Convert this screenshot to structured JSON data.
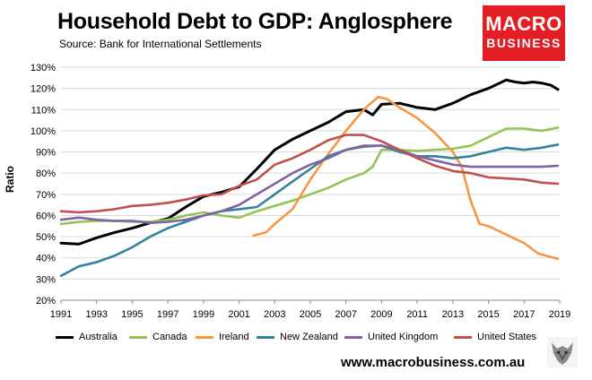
{
  "title": "Household Debt to GDP: Anglosphere",
  "subtitle": "Source: Bank for International Settlements",
  "logo": {
    "line1": "MACRO",
    "line2": "BUSINESS",
    "color": "#e31e24"
  },
  "website": "www.macrobusiness.com.au",
  "chart_data": {
    "type": "line",
    "ylabel": "Ratio",
    "xlabel": "",
    "xlim": [
      1991,
      2019
    ],
    "ylim": [
      20,
      130
    ],
    "x_ticks": [
      "1991",
      "1993",
      "1995",
      "1997",
      "1999",
      "2001",
      "2003",
      "2005",
      "2007",
      "2009",
      "2011",
      "2013",
      "2015",
      "2017",
      "2019"
    ],
    "y_ticks": [
      "20%",
      "30%",
      "40%",
      "50%",
      "60%",
      "70%",
      "80%",
      "90%",
      "100%",
      "110%",
      "120%",
      "130%"
    ],
    "grid": "horizontal",
    "legend_position": "bottom",
    "series": [
      {
        "name": "Australia",
        "color": "#000000",
        "points": [
          [
            1991,
            47
          ],
          [
            1992,
            46.5
          ],
          [
            1993,
            49.5
          ],
          [
            1994,
            52
          ],
          [
            1995,
            54
          ],
          [
            1996,
            56.5
          ],
          [
            1997,
            58.5
          ],
          [
            1998,
            64
          ],
          [
            1999,
            69
          ],
          [
            2000,
            71
          ],
          [
            2001,
            73.5
          ],
          [
            2002,
            82
          ],
          [
            2003,
            91
          ],
          [
            2004,
            96
          ],
          [
            2005,
            100
          ],
          [
            2006,
            104
          ],
          [
            2007,
            109
          ],
          [
            2008,
            110
          ],
          [
            2008.5,
            107.5
          ],
          [
            2009,
            112.5
          ],
          [
            2010,
            113
          ],
          [
            2011,
            111
          ],
          [
            2012,
            110
          ],
          [
            2013,
            113
          ],
          [
            2014,
            117
          ],
          [
            2015,
            120
          ],
          [
            2016,
            124
          ],
          [
            2016.5,
            123
          ],
          [
            2017,
            122.5
          ],
          [
            2017.5,
            123
          ],
          [
            2018,
            122.5
          ],
          [
            2018.5,
            121.5
          ],
          [
            2018.9,
            119.5
          ]
        ]
      },
      {
        "name": "Canada",
        "color": "#92c353",
        "points": [
          [
            1991,
            56
          ],
          [
            1992,
            57
          ],
          [
            1993,
            57.5
          ],
          [
            1994,
            57.5
          ],
          [
            1995,
            57
          ],
          [
            1996,
            57
          ],
          [
            1997,
            58
          ],
          [
            1998,
            60
          ],
          [
            1999,
            61.5
          ],
          [
            2000,
            60
          ],
          [
            2001,
            59
          ],
          [
            2002,
            62
          ],
          [
            2003,
            64.5
          ],
          [
            2004,
            67
          ],
          [
            2005,
            70
          ],
          [
            2006,
            73
          ],
          [
            2007,
            77
          ],
          [
            2008,
            80
          ],
          [
            2008.5,
            83
          ],
          [
            2009,
            91
          ],
          [
            2010,
            91
          ],
          [
            2011,
            90.5
          ],
          [
            2012,
            91
          ],
          [
            2013,
            91.5
          ],
          [
            2014,
            93
          ],
          [
            2015,
            97
          ],
          [
            2016,
            101
          ],
          [
            2017,
            101
          ],
          [
            2018,
            100
          ],
          [
            2018.9,
            101.5
          ]
        ]
      },
      {
        "name": "Ireland",
        "color": "#f79646",
        "points": [
          [
            2001.8,
            50.5
          ],
          [
            2002.5,
            52
          ],
          [
            2003,
            56
          ],
          [
            2004,
            63
          ],
          [
            2005,
            77
          ],
          [
            2006,
            89
          ],
          [
            2007,
            100
          ],
          [
            2008,
            110
          ],
          [
            2008.8,
            116
          ],
          [
            2009.3,
            115
          ],
          [
            2010,
            111
          ],
          [
            2011,
            106
          ],
          [
            2012,
            99
          ],
          [
            2013,
            90
          ],
          [
            2013.5,
            83
          ],
          [
            2014,
            67
          ],
          [
            2014.5,
            56
          ],
          [
            2015,
            55
          ],
          [
            2016,
            51
          ],
          [
            2017,
            47
          ],
          [
            2017.8,
            42
          ],
          [
            2018.9,
            39.5
          ]
        ]
      },
      {
        "name": "New Zealand",
        "color": "#31849b",
        "points": [
          [
            1991,
            31.5
          ],
          [
            1992,
            36
          ],
          [
            1993,
            38
          ],
          [
            1994,
            41
          ],
          [
            1995,
            45
          ],
          [
            1996,
            50
          ],
          [
            1997,
            54
          ],
          [
            1998,
            57
          ],
          [
            1999,
            60
          ],
          [
            2000,
            62
          ],
          [
            2001,
            63
          ],
          [
            2002,
            64
          ],
          [
            2003,
            70
          ],
          [
            2004,
            76
          ],
          [
            2005,
            82
          ],
          [
            2006,
            88
          ],
          [
            2007,
            91
          ],
          [
            2008,
            92.5
          ],
          [
            2009,
            93
          ],
          [
            2010,
            90
          ],
          [
            2011,
            88
          ],
          [
            2012,
            88
          ],
          [
            2013,
            87
          ],
          [
            2014,
            88
          ],
          [
            2015,
            90
          ],
          [
            2016,
            92
          ],
          [
            2017,
            91
          ],
          [
            2018,
            92
          ],
          [
            2018.9,
            93.5
          ]
        ]
      },
      {
        "name": "United Kingdom",
        "color": "#8064a2",
        "points": [
          [
            1991,
            58
          ],
          [
            1992,
            59
          ],
          [
            1993,
            58
          ],
          [
            1994,
            57.5
          ],
          [
            1995,
            57.5
          ],
          [
            1996,
            56.5
          ],
          [
            1997,
            57
          ],
          [
            1998,
            58
          ],
          [
            1999,
            60
          ],
          [
            2000,
            62
          ],
          [
            2001,
            65
          ],
          [
            2002,
            70
          ],
          [
            2003,
            75
          ],
          [
            2004,
            80
          ],
          [
            2005,
            84
          ],
          [
            2006,
            87
          ],
          [
            2007,
            91
          ],
          [
            2008,
            93
          ],
          [
            2009,
            93
          ],
          [
            2010,
            91
          ],
          [
            2011,
            88
          ],
          [
            2012,
            86
          ],
          [
            2013,
            84
          ],
          [
            2014,
            83
          ],
          [
            2015,
            83
          ],
          [
            2016,
            83
          ],
          [
            2017,
            83
          ],
          [
            2018,
            83
          ],
          [
            2018.9,
            83.5
          ]
        ]
      },
      {
        "name": "United States",
        "color": "#c0504d",
        "points": [
          [
            1991,
            62
          ],
          [
            1992,
            61.5
          ],
          [
            1993,
            62
          ],
          [
            1994,
            63
          ],
          [
            1995,
            64.5
          ],
          [
            1996,
            65
          ],
          [
            1997,
            66
          ],
          [
            1998,
            67.5
          ],
          [
            1999,
            69.5
          ],
          [
            2000,
            70
          ],
          [
            2001,
            74
          ],
          [
            2002,
            77
          ],
          [
            2003,
            84
          ],
          [
            2004,
            87
          ],
          [
            2005,
            91
          ],
          [
            2006,
            95.5
          ],
          [
            2007,
            98
          ],
          [
            2008,
            98
          ],
          [
            2009,
            95
          ],
          [
            2010,
            91
          ],
          [
            2011,
            87
          ],
          [
            2012,
            83.5
          ],
          [
            2013,
            81
          ],
          [
            2014,
            80
          ],
          [
            2015,
            78
          ],
          [
            2016,
            77.5
          ],
          [
            2017,
            77
          ],
          [
            2018,
            75.5
          ],
          [
            2018.9,
            75
          ]
        ]
      }
    ]
  }
}
